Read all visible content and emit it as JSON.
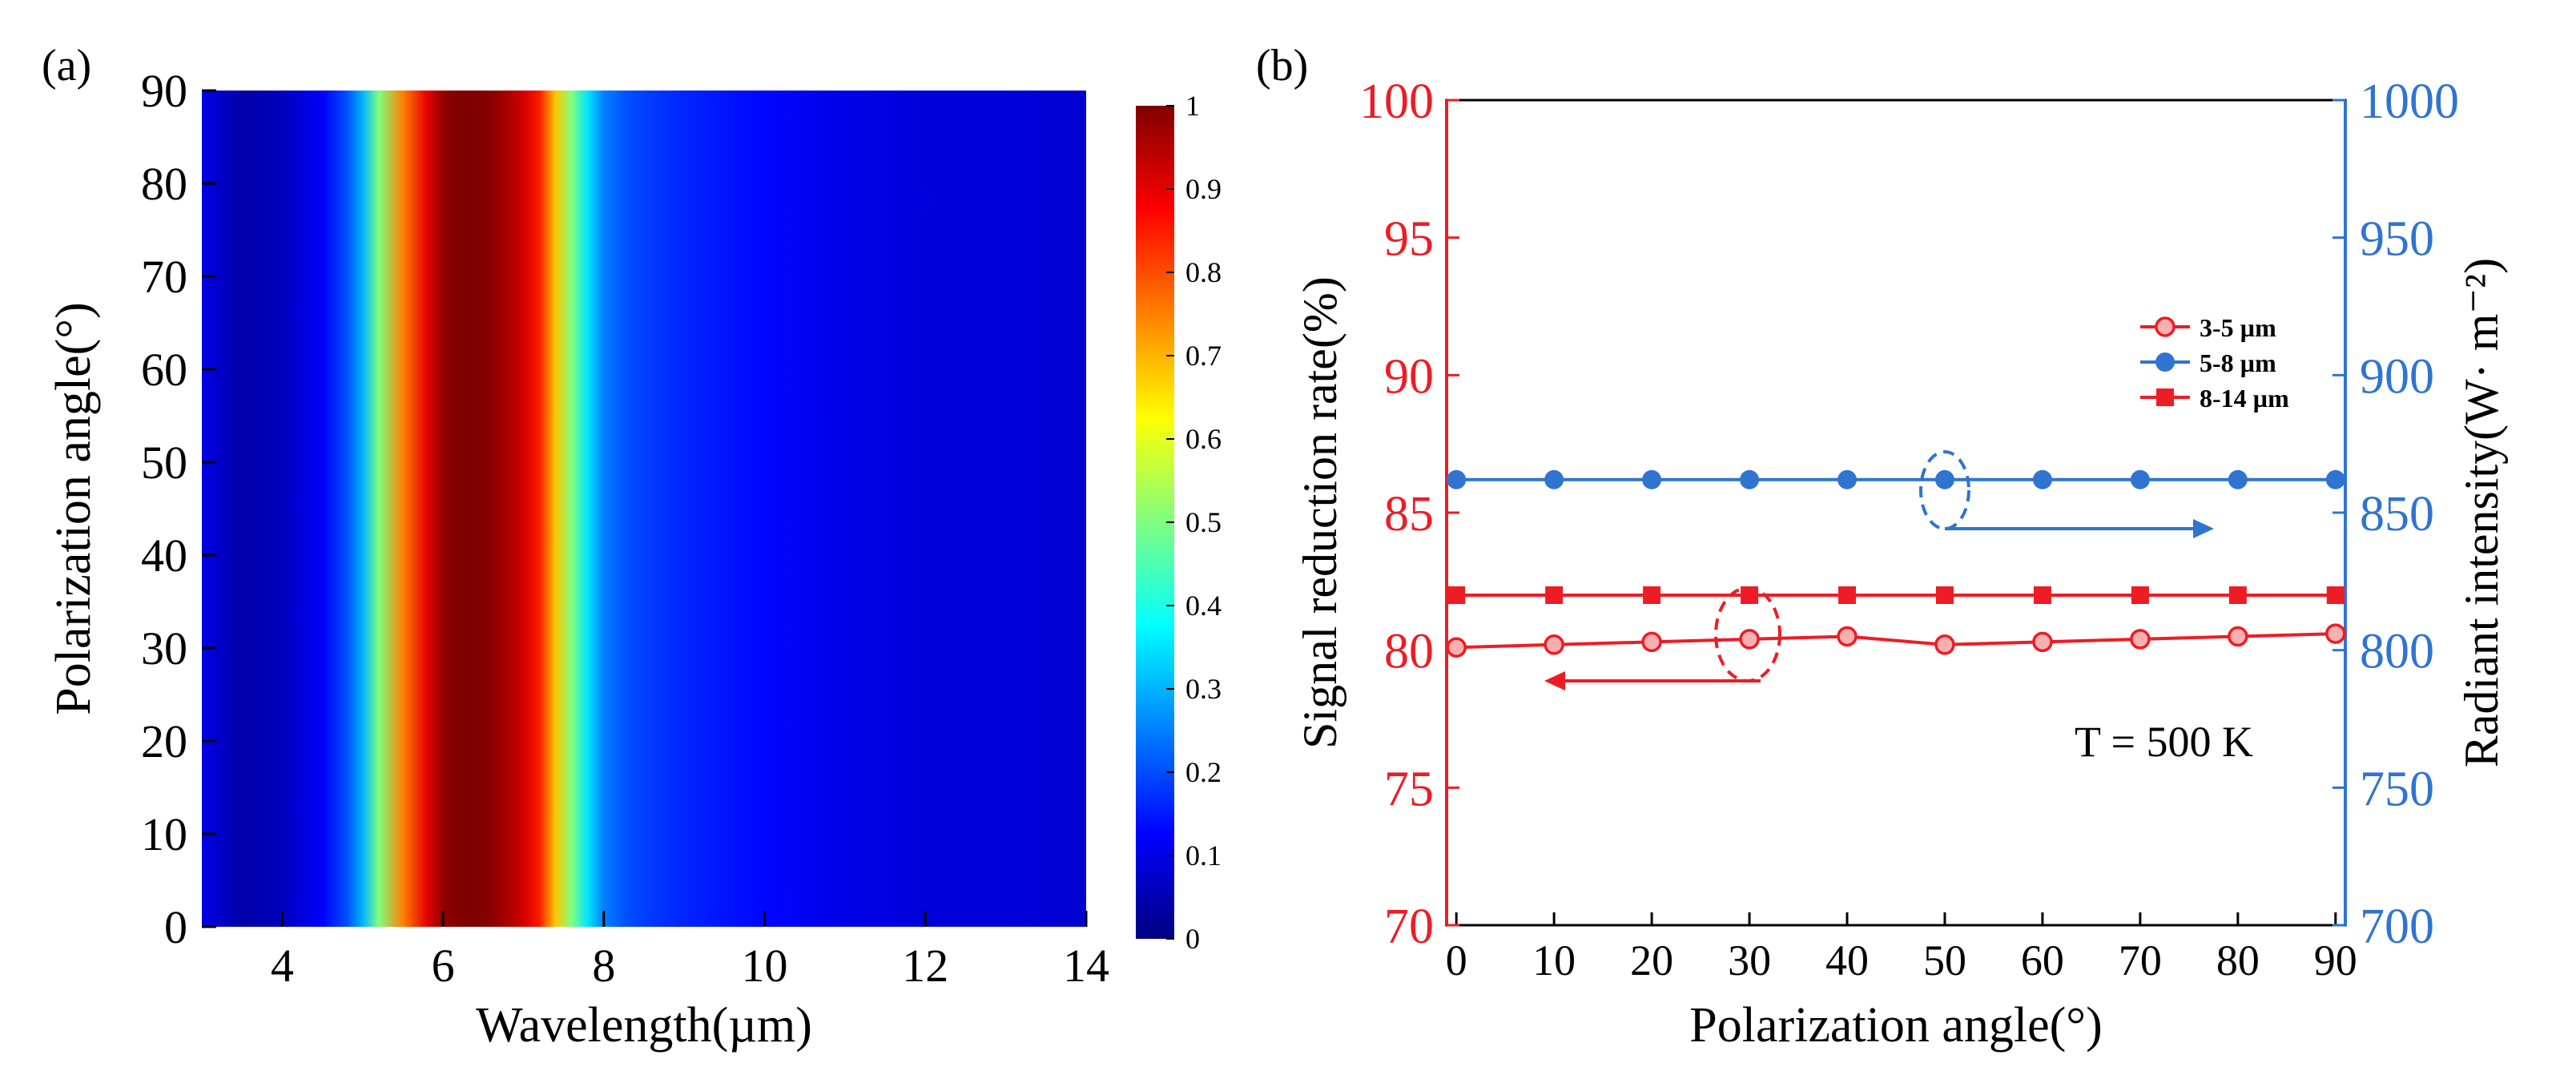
{
  "chart_data": [
    {
      "type": "heatmap",
      "panel_label": "(a)",
      "title": "",
      "xlabel": "Wavelength(µm)",
      "ylabel": "Polarization angle(°)",
      "xlim": [
        3,
        14
      ],
      "ylim": [
        0,
        90
      ],
      "x_ticks": [
        "4",
        "6",
        "8",
        "10",
        "12",
        "14"
      ],
      "x_tick_values": [
        4,
        6,
        8,
        10,
        12,
        14
      ],
      "y_ticks": [
        "0",
        "10",
        "20",
        "30",
        "40",
        "50",
        "60",
        "70",
        "80",
        "90"
      ],
      "y_tick_values": [
        0,
        10,
        20,
        30,
        40,
        50,
        60,
        70,
        80,
        90
      ],
      "colorbar": {
        "min": 0,
        "max": 1,
        "ticks": [
          "0",
          "0.1",
          "0.2",
          "0.3",
          "0.4",
          "0.5",
          "0.6",
          "0.7",
          "0.8",
          "0.9",
          "1"
        ],
        "tick_values": [
          0,
          0.1,
          0.2,
          0.3,
          0.4,
          0.5,
          0.6,
          0.7,
          0.8,
          0.9,
          1.0
        ],
        "colormap": "jet"
      },
      "profile_note": "Value is independent of polarization angle; varies only with wavelength",
      "wavelength_profile": {
        "x": [
          3.0,
          3.5,
          4.0,
          4.5,
          4.8,
          5.0,
          5.2,
          5.5,
          5.8,
          6.0,
          6.2,
          6.4,
          6.6,
          6.8,
          7.0,
          7.2,
          7.4,
          7.6,
          7.8,
          8.0,
          8.3,
          8.6,
          9.0,
          10.0,
          11.0,
          12.0,
          13.0,
          14.0
        ],
        "values": [
          0.1,
          0.04,
          0.06,
          0.12,
          0.2,
          0.3,
          0.5,
          0.75,
          0.9,
          0.98,
          1.0,
          1.0,
          0.99,
          0.96,
          0.92,
          0.85,
          0.68,
          0.5,
          0.35,
          0.25,
          0.2,
          0.18,
          0.16,
          0.13,
          0.1,
          0.09,
          0.09,
          0.08
        ]
      }
    },
    {
      "type": "line",
      "panel_label": "(b)",
      "title": "",
      "xlabel": "Polarization angle(°)",
      "ylabel_left": "Signal reduction rate(%)",
      "ylabel_right": "Radiant intensity(W· m⁻²)",
      "xlim": [
        -1,
        91
      ],
      "ylim_left": [
        70,
        100
      ],
      "ylim_right": [
        700,
        1000
      ],
      "x_ticks": [
        "0",
        "10",
        "20",
        "30",
        "40",
        "50",
        "60",
        "70",
        "80",
        "90"
      ],
      "y_ticks_left": [
        "70",
        "75",
        "80",
        "85",
        "90",
        "95",
        "100"
      ],
      "y_ticks_right": [
        "700",
        "750",
        "800",
        "850",
        "900",
        "950",
        "1000"
      ],
      "x": [
        0,
        10,
        20,
        30,
        40,
        50,
        60,
        70,
        80,
        90
      ],
      "series": [
        {
          "name": "3-5 µm",
          "axis": "left",
          "marker": "circle-open",
          "color": "#ee1c24",
          "values": [
            80.1,
            80.2,
            80.3,
            80.4,
            80.5,
            80.2,
            80.3,
            80.4,
            80.5,
            80.6
          ]
        },
        {
          "name": "5-8 µm",
          "axis": "right",
          "marker": "circle",
          "color": "#2f74d0",
          "values": [
            862,
            862,
            862,
            862,
            862,
            862,
            862,
            862,
            862,
            862
          ]
        },
        {
          "name": "8-14 µm",
          "axis": "left",
          "marker": "square",
          "color": "#ee1c24",
          "values": [
            82,
            82,
            82,
            82,
            82,
            82,
            82,
            82,
            82,
            82
          ]
        }
      ],
      "annotation": "T = 500 K",
      "left_color": "#ee1c24",
      "right_color": "#2f74d0",
      "legend_position": "right-middle"
    }
  ]
}
